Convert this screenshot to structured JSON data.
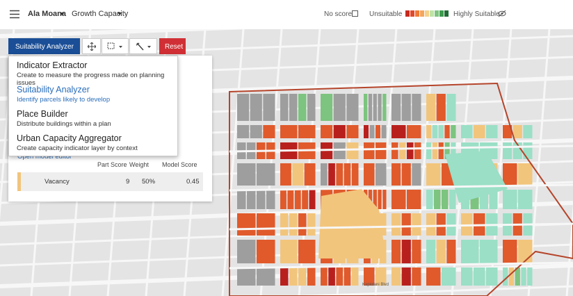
{
  "header": {
    "project": "Ala Moana",
    "scenario": "Growth Capacity",
    "no_score": "No score",
    "unsuitable": "Unsuitable",
    "highly_suitable": "Highly Suitable"
  },
  "toolbar": {
    "tool": "Suitability Analyzer",
    "reset": "Reset"
  },
  "menu": {
    "items": [
      {
        "title": "Indicator Extractor",
        "description": "Create to measure the progress made on planning issues"
      },
      {
        "title": "Suitability Analyzer",
        "description": "Identify parcels likely to develop"
      },
      {
        "title": "Place Builder",
        "description": "Distribute buildings within a plan"
      },
      {
        "title": "Urban Capacity Aggregator",
        "description": "Create capacity indicator layer by context"
      }
    ]
  },
  "panel": {
    "link": "Open model editor",
    "columns": [
      "Part Score",
      "Weight",
      "Model Score"
    ],
    "rows": [
      [
        "Vacancy",
        "9",
        "50%",
        "0.45"
      ]
    ]
  },
  "map": {
    "street": "Kapiolani Blvd"
  }
}
